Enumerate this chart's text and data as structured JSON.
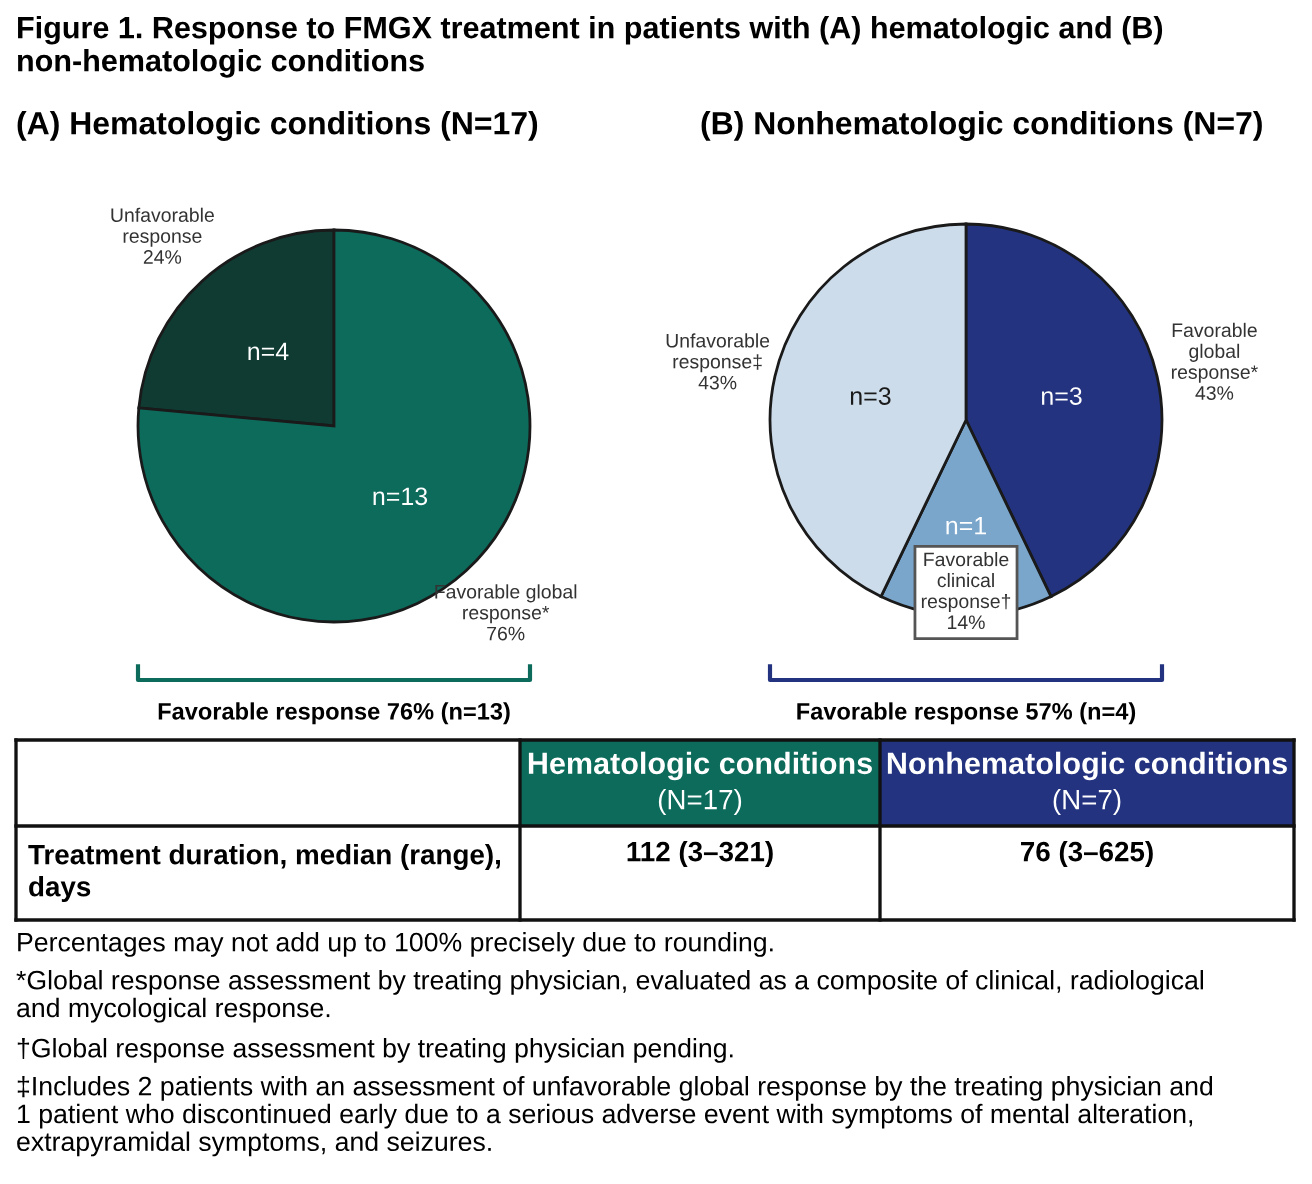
{
  "chart_data": [
    {
      "type": "pie",
      "title": "(A) Hematologic conditions (N=17)",
      "categories": [
        "Unfavorable\nresponse\n24%",
        "Favorable global\nresponse*\n76%"
      ],
      "values": [
        4,
        13
      ],
      "colors": [
        "#0f3b33",
        "#0d6b5c"
      ],
      "value_labels": [
        "n=4",
        "n=13"
      ],
      "annotations": [
        "Favorable response 76% (n=13)"
      ]
    },
    {
      "type": "pie",
      "title": "(B) Nonhematologic conditions (N=7)",
      "categories": [
        "Favorable\nglobal\nresponse*\n43%",
        "Favorable\nclinical\nresponse†\n14%",
        "Unfavorable\nresponse‡\n43%"
      ],
      "values": [
        3,
        1,
        3
      ],
      "colors": [
        "#23337f",
        "#7ba6cc",
        "#cddcea"
      ],
      "value_labels": [
        "n=3",
        "n=1",
        "n=3"
      ],
      "annotations": [
        "Favorable response 57% (n=4)"
      ]
    },
    {
      "type": "other",
      "title": "Figure 1. Response to FMGX treatment in patients with (A) hematologic and (B) non-hematologic conditions",
      "annotations": [
        "Hematologic conditions\n(N=17)",
        "Nonhematologic conditions\n(N=7)",
        "Treatment duration, median (range),\ndays",
        "112 (3–321)",
        "76 (3–625)",
        "Percentages may not add up to 100% precisely due to rounding.",
        "*Global response assessment by treating physician, evaluated as a composite of clinical, radiological\nand mycological response.",
        "†Global response assessment by treating physician pending.",
        "‡Includes 2 patients with an assessment of unfavorable global response by the treating physician and\n1 patient who discontinued early due to a serious adverse event with symptoms of mental alteration,\nextrapyramidal symptoms, and seizures."
      ]
    }
  ]
}
